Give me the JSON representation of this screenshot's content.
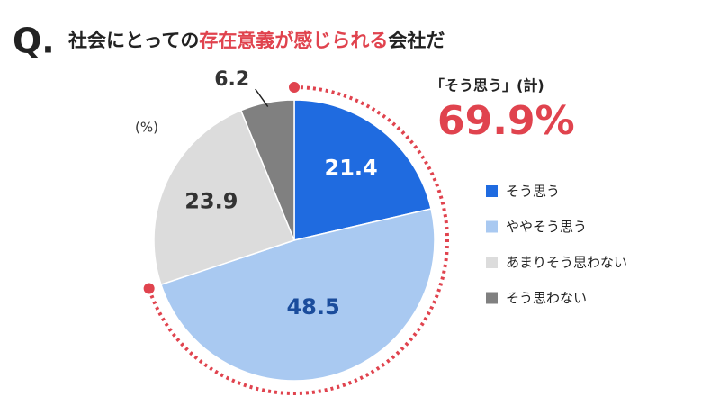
{
  "chart_data": {
    "type": "pie",
    "question": "Q.",
    "title_parts": [
      "社会にとっての",
      "存在意義が感じられる",
      "会社だ"
    ],
    "unit": "(%)",
    "categories": [
      "そう思う",
      "ややそう思う",
      "あまりそう思わない",
      "そう思わない"
    ],
    "values": [
      21.4,
      48.5,
      23.9,
      6.2
    ],
    "colors": [
      "#1f6be0",
      "#a9c9f1",
      "#dcdcdc",
      "#808080"
    ],
    "label_colors": [
      "#ffffff",
      "#1a4c9c",
      "#333333",
      "#333333"
    ],
    "total": {
      "label": "「そう思う」(計)",
      "value": 69.9,
      "value_label": "69.9%",
      "color": "#e0434e"
    },
    "legend": "right"
  }
}
